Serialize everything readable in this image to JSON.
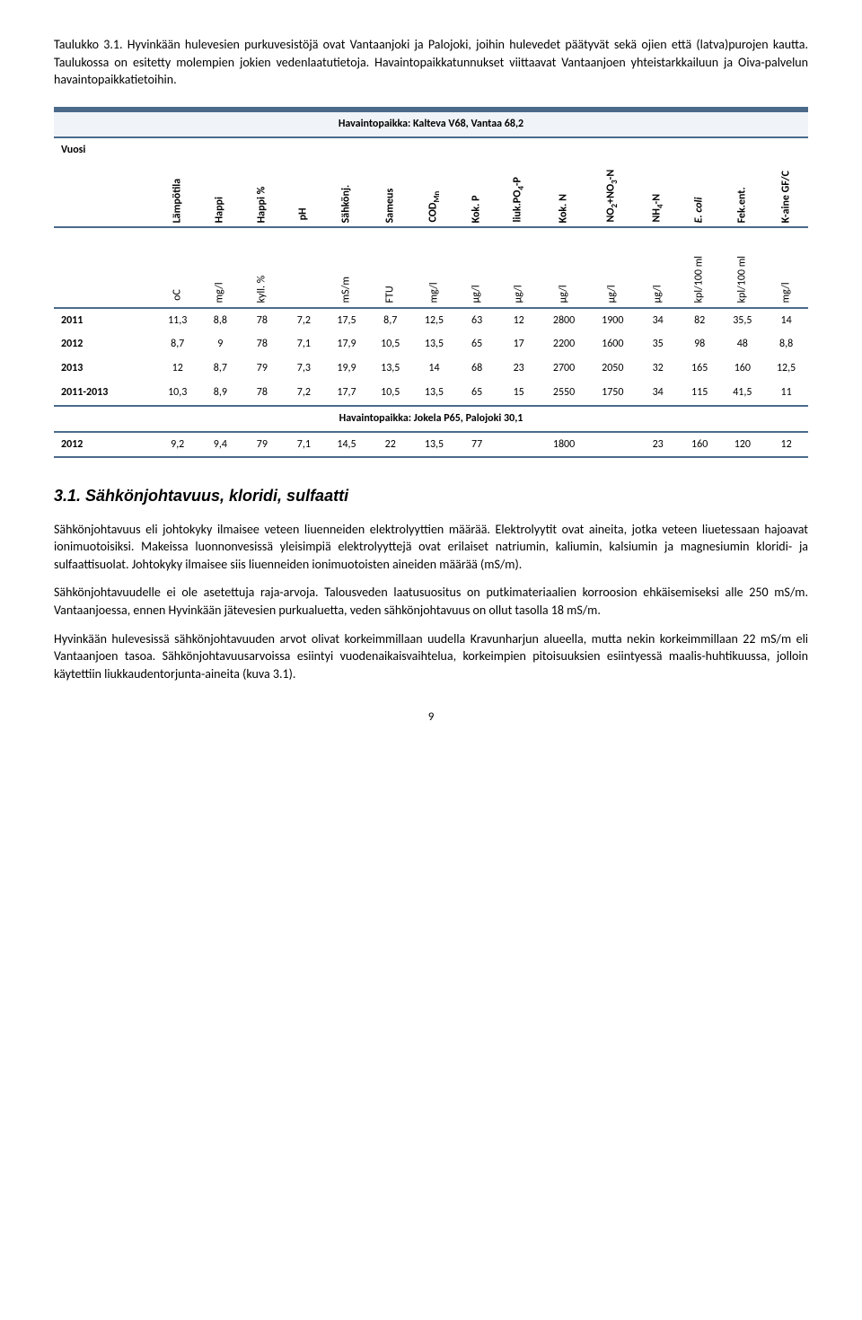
{
  "intro": {
    "p1": "Taulukko 3.1. Hyvinkään hulevesien purkuvesistöjä ovat Vantaanjoki ja Palojoki, joihin hulevedet päätyvät sekä ojien että (latva)purojen kautta. Taulukossa on esitetty molempien jokien vedenlaatutietoja. Havaintopaikkatunnukset viittaavat Vantaanjoen yhteistarkkailuun ja Oiva-palvelun havaintopaikkatietoihin."
  },
  "table": {
    "caption1": "Havaintopaikka: Kalteva V68, Vantaa 68,2",
    "vuosi": "Vuosi",
    "headers": [
      "Lämpötila",
      "Happi",
      "Happi %",
      "pH",
      "Sähkönj.",
      "Sameus",
      "COD",
      "Kok. P",
      "liuk.PO",
      "Kok. N",
      "NO",
      "NH",
      "E. coli",
      "Fek.ent.",
      "K-aine GF/C"
    ],
    "hdr_cod_sub": "Mn",
    "hdr_po_sub": "4",
    "hdr_po_suf": "-P",
    "hdr_no_sub1": "2",
    "hdr_no_mid": "+NO",
    "hdr_no_sub2": "3",
    "hdr_no_suf": "-N",
    "hdr_nh_sub": "4",
    "hdr_nh_suf": "-N",
    "units": [
      "oC",
      "mg/l",
      "kyll. %",
      "",
      "mS/m",
      "FTU",
      "mg/l",
      "µg/l",
      "µg/l",
      "µg/l",
      "µg/l",
      "µg/l",
      "kpl/100 ml",
      "kpl/100 ml",
      "mg/l"
    ],
    "rows": [
      {
        "y": "2011",
        "v": [
          "11,3",
          "8,8",
          "78",
          "7,2",
          "17,5",
          "8,7",
          "12,5",
          "63",
          "12",
          "2800",
          "1900",
          "34",
          "82",
          "35,5",
          "14"
        ]
      },
      {
        "y": "2012",
        "v": [
          "8,7",
          "9",
          "78",
          "7,1",
          "17,9",
          "10,5",
          "13,5",
          "65",
          "17",
          "2200",
          "1600",
          "35",
          "98",
          "48",
          "8,8"
        ]
      },
      {
        "y": "2013",
        "v": [
          "12",
          "8,7",
          "79",
          "7,3",
          "19,9",
          "13,5",
          "14",
          "68",
          "23",
          "2700",
          "2050",
          "32",
          "165",
          "160",
          "12,5"
        ]
      },
      {
        "y": "2011-2013",
        "v": [
          "10,3",
          "8,9",
          "78",
          "7,2",
          "17,7",
          "10,5",
          "13,5",
          "65",
          "15",
          "2550",
          "1750",
          "34",
          "115",
          "41,5",
          "11"
        ]
      }
    ],
    "caption2": "Havaintopaikka: Jokela P65, Palojoki 30,1",
    "rows2": [
      {
        "y": "2012",
        "v": [
          "9,2",
          "9,4",
          "79",
          "7,1",
          "14,5",
          "22",
          "13,5",
          "77",
          "",
          "1800",
          "",
          "23",
          "160",
          "120",
          "12"
        ]
      }
    ]
  },
  "section": {
    "heading": "3.1. Sähkönjohtavuus, kloridi, sulfaatti",
    "p1": "Sähkönjohtavuus eli johtokyky ilmaisee veteen liuenneiden elektrolyyttien määrää. Elektrolyytit ovat aineita, jotka veteen liuetessaan hajoavat ionimuotoisiksi. Makeissa luonnonvesissä yleisimpiä elektrolyyttejä ovat erilaiset natriumin, kaliumin, kalsiumin ja magnesiumin kloridi- ja sulfaattisuolat. Johtokyky ilmaisee siis liuenneiden ionimuotoisten aineiden määrää (mS/m).",
    "p2": "Sähkönjohtavuudelle ei ole asetettuja raja-arvoja. Talousveden laatusuositus on putkimateriaalien korroosion ehkäisemiseksi alle 250 mS/m. Vantaanjoessa, ennen Hyvinkään jätevesien purkualuetta, veden sähkönjohtavuus on ollut tasolla 18 mS/m.",
    "p3": "Hyvinkään hulevesissä sähkönjohtavuuden arvot olivat korkeimmillaan uudella Kravunharjun alueella, mutta nekin korkeimmillaan 22 mS/m eli Vantaanjoen tasoa. Sähkönjohtavuusarvoissa esiintyi vuodenaikaisvaihtelua, korkeimpien pitoisuuksien esiintyessä maalis-huhtikuussa, jolloin käytettiin liukkaudentorjunta-aineita (kuva 3.1)."
  },
  "pageNum": "9"
}
